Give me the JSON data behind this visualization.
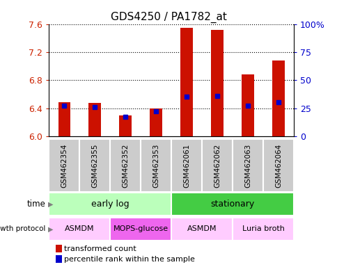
{
  "title": "GDS4250 / PA1782_at",
  "samples": [
    "GSM462354",
    "GSM462355",
    "GSM462352",
    "GSM462353",
    "GSM462061",
    "GSM462062",
    "GSM462063",
    "GSM462064"
  ],
  "transformed_counts": [
    6.48,
    6.47,
    6.3,
    6.4,
    7.55,
    7.52,
    6.88,
    7.08
  ],
  "percentile_ranks": [
    27,
    26,
    17,
    22,
    35,
    36,
    27,
    30
  ],
  "ymin": 6.0,
  "ymax": 7.6,
  "yticks": [
    6.0,
    6.4,
    6.8,
    7.2,
    7.6
  ],
  "right_yticks": [
    0,
    25,
    50,
    75,
    100
  ],
  "right_yticklabels": [
    "0",
    "25",
    "50",
    "75",
    "100%"
  ],
  "bar_color": "#cc1100",
  "dot_color": "#0000cc",
  "time_groups": [
    {
      "label": "early log",
      "start": 0,
      "end": 4,
      "color": "#bbffbb"
    },
    {
      "label": "stationary",
      "start": 4,
      "end": 8,
      "color": "#44cc44"
    }
  ],
  "protocol_groups": [
    {
      "label": "ASMDM",
      "start": 0,
      "end": 2,
      "color": "#ffccff"
    },
    {
      "label": "MOPS-glucose",
      "start": 2,
      "end": 4,
      "color": "#ee66ee"
    },
    {
      "label": "ASMDM",
      "start": 4,
      "end": 6,
      "color": "#ffccff"
    },
    {
      "label": "Luria broth",
      "start": 6,
      "end": 8,
      "color": "#ffccff"
    }
  ],
  "sample_bg_color": "#cccccc",
  "left_tick_color": "#cc2200",
  "right_tick_color": "#0000cc",
  "bar_width": 0.4
}
